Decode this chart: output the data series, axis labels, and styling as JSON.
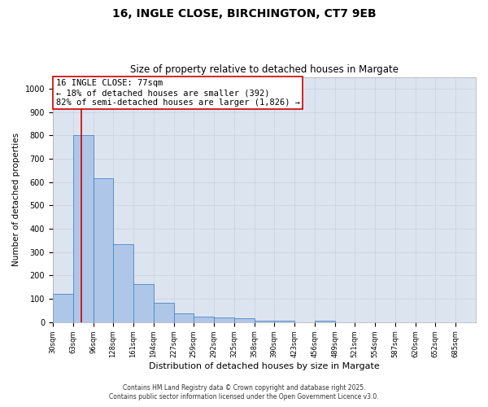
{
  "title1": "16, INGLE CLOSE, BIRCHINGTON, CT7 9EB",
  "title2": "Size of property relative to detached houses in Margate",
  "xlabel": "Distribution of detached houses by size in Margate",
  "ylabel": "Number of detached properties",
  "bin_edges": [
    30,
    63,
    96,
    128,
    161,
    194,
    227,
    259,
    292,
    325,
    358,
    390,
    423,
    456,
    489,
    521,
    554,
    587,
    620,
    652,
    685,
    718
  ],
  "bar_heights": [
    120,
    800,
    615,
    335,
    165,
    82,
    38,
    25,
    22,
    18,
    5,
    5,
    0,
    8,
    0,
    0,
    0,
    0,
    0,
    0,
    0
  ],
  "bar_color": "#aec6e8",
  "bar_edge_color": "#4a86c8",
  "red_line_x": 77,
  "red_line_color": "#cc0000",
  "annotation_line1": "16 INGLE CLOSE: 77sqm",
  "annotation_line2": "← 18% of detached houses are smaller (392)",
  "annotation_line3": "82% of semi-detached houses are larger (1,826) →",
  "annotation_box_color": "#cc0000",
  "ylim": [
    0,
    1050
  ],
  "yticks": [
    0,
    100,
    200,
    300,
    400,
    500,
    600,
    700,
    800,
    900,
    1000
  ],
  "grid_color": "#c8d0dc",
  "bg_color": "#dce4f0",
  "footer1": "Contains HM Land Registry data © Crown copyright and database right 2025.",
  "footer2": "Contains public sector information licensed under the Open Government Licence v3.0.",
  "title1_fontsize": 10,
  "title2_fontsize": 8.5,
  "ylabel_fontsize": 7.5,
  "xlabel_fontsize": 8,
  "tick_fontsize": 6,
  "ytick_fontsize": 7,
  "annotation_fontsize": 7.5,
  "footer_fontsize": 5.5
}
